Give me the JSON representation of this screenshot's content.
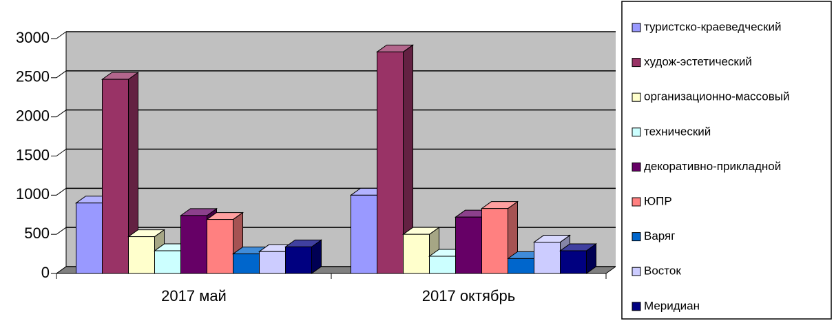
{
  "chart_data": {
    "type": "bar3d",
    "categories": [
      "2017 май",
      "2017 октябрь"
    ],
    "series": [
      {
        "name": "туристско-краеведческий",
        "color": "#9999ff",
        "values": [
          900,
          1000
        ]
      },
      {
        "name": "худож-эстетический",
        "color": "#993366",
        "values": [
          2480,
          2830
        ]
      },
      {
        "name": "организационно-массовый",
        "color": "#ffffcc",
        "values": [
          470,
          500
        ]
      },
      {
        "name": "технический",
        "color": "#ccffff",
        "values": [
          290,
          220
        ]
      },
      {
        "name": "декоративно-прикладной",
        "color": "#660066",
        "values": [
          740,
          720
        ]
      },
      {
        "name": "ЮПР",
        "color": "#ff8080",
        "values": [
          690,
          830
        ]
      },
      {
        "name": "Варяг",
        "color": "#0066cc",
        "values": [
          250,
          190
        ]
      },
      {
        "name": "Восток",
        "color": "#ccccff",
        "values": [
          280,
          400
        ]
      },
      {
        "name": "Меридиан",
        "color": "#000080",
        "values": [
          340,
          290
        ]
      }
    ],
    "ylim": [
      0,
      3000
    ],
    "yticks": [
      0,
      500,
      1000,
      1500,
      2000,
      2500,
      3000
    ],
    "grid": true,
    "legend": "right"
  }
}
